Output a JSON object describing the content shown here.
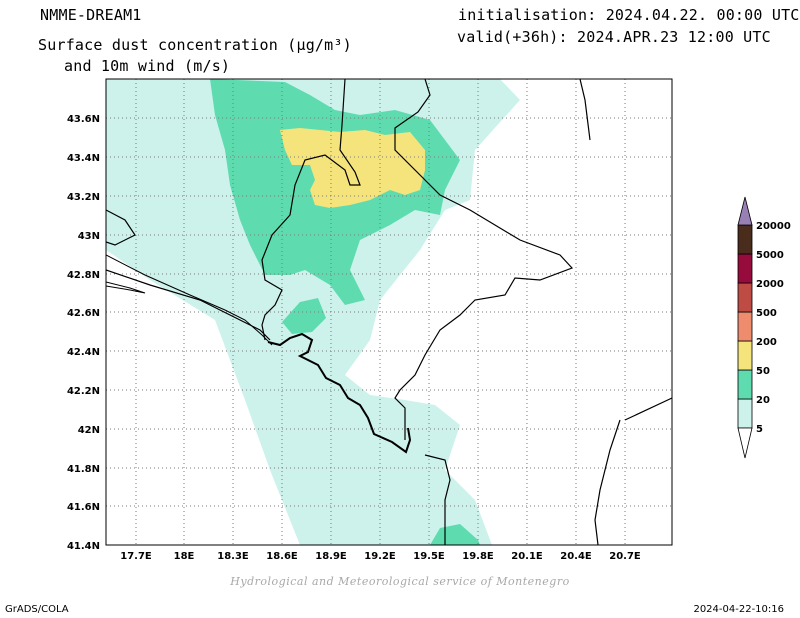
{
  "header": {
    "model": "NMME-DREAM1",
    "title_line1": "Surface dust concentration (µg/m³)",
    "title_line2": "and 10m wind (m/s)",
    "init": "initialisation: 2024.04.22. 00:00 UTC",
    "valid": "valid(+36h): 2024.APR.23 12:00 UTC"
  },
  "axes": {
    "lat_labels": [
      "43.6N",
      "43.4N",
      "43.2N",
      "43N",
      "42.8N",
      "42.6N",
      "42.4N",
      "42.2N",
      "42N",
      "41.8N",
      "41.6N",
      "41.4N"
    ],
    "lon_labels": [
      "17.7E",
      "18E",
      "18.3E",
      "18.6E",
      "18.9E",
      "19.2E",
      "19.5E",
      "19.8E",
      "20.1E",
      "20.4E",
      "20.7E"
    ]
  },
  "legend": {
    "levels": [
      "5",
      "20",
      "50",
      "200",
      "500",
      "2000",
      "5000",
      "20000"
    ],
    "colors": [
      "#cdf2ec",
      "#5edcb0",
      "#f5e47c",
      "#ef8c6e",
      "#be4c44",
      "#960a3c",
      "#4a2c1c",
      "#9880b4"
    ]
  },
  "footer": {
    "credit": "Hydrological and Meteorological service of Montenegro",
    "left": "GrADS/COLA",
    "right": "2024-04-22-10:16"
  }
}
